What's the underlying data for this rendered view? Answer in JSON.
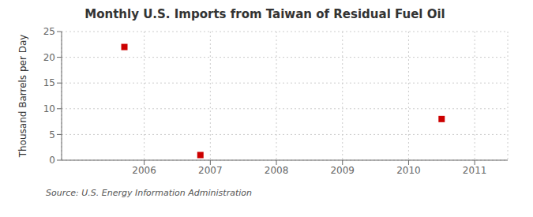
{
  "chart_data": {
    "type": "scatter",
    "title": "Monthly U.S. Imports from Taiwan of Residual Fuel Oil",
    "ylabel": "Thousand Barrels per Day",
    "source": "Source: U.S. Energy Information Administration",
    "x": [
      2005.7,
      2006.85,
      2010.5
    ],
    "values": [
      22,
      1,
      8
    ],
    "color": "#cc0000",
    "marker": "square",
    "xlim": [
      2004.75,
      2011.5
    ],
    "xticks": [
      2006,
      2007,
      2008,
      2009,
      2010,
      2011
    ],
    "ylim": [
      0,
      25
    ],
    "yticks": [
      0,
      5,
      10,
      15,
      20,
      25
    ],
    "grid": true
  }
}
